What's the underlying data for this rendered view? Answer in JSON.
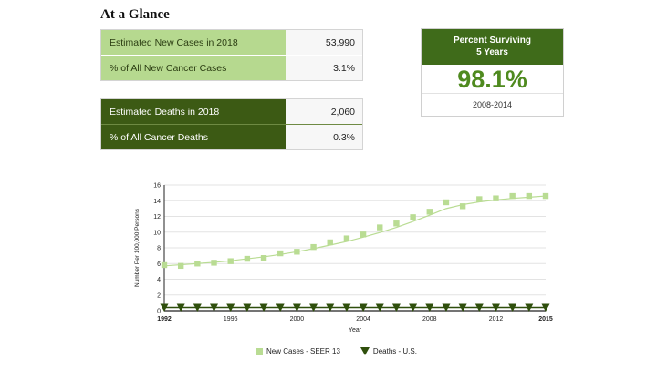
{
  "header": {
    "title": "At a Glance"
  },
  "new_cases_table": {
    "rows": [
      {
        "label": "Estimated New Cases in 2018",
        "value": "53,990"
      },
      {
        "label": "% of All New Cancer Cases",
        "value": "3.1%"
      }
    ]
  },
  "deaths_table": {
    "rows": [
      {
        "label": "Estimated Deaths in 2018",
        "value": "2,060"
      },
      {
        "label": "% of All Cancer Deaths",
        "value": "0.3%"
      }
    ]
  },
  "survival": {
    "heading_line1": "Percent Surviving",
    "heading_line2": "5 Years",
    "value": "98.1%",
    "years": "2008-2014"
  },
  "colors": {
    "light_green": "#b6d98f",
    "dark_green": "#3c5a14",
    "survival_header": "#3f6b1a",
    "survival_value": "#4f8a1f",
    "new_cases_series": "#b9dc93",
    "deaths_series": "#2f4f0c"
  },
  "chart_data": {
    "type": "line",
    "title": "",
    "xlabel": "Year",
    "ylabel": "Number Per 100,000 Persons",
    "xlim": [
      1992,
      2015
    ],
    "ylim": [
      0,
      16
    ],
    "x_ticks": [
      "1992",
      "1996",
      "2000",
      "2004",
      "2008",
      "2012",
      "2015"
    ],
    "y_ticks": [
      "0",
      "2",
      "4",
      "6",
      "8",
      "10",
      "12",
      "14",
      "16"
    ],
    "grid": true,
    "legend_position": "bottom",
    "x": [
      1992,
      1993,
      1994,
      1995,
      1996,
      1997,
      1998,
      1999,
      2000,
      2001,
      2002,
      2003,
      2004,
      2005,
      2006,
      2007,
      2008,
      2009,
      2010,
      2011,
      2012,
      2013,
      2014,
      2015
    ],
    "series": [
      {
        "name": "New Cases - SEER 13",
        "marker": "square",
        "values": [
          5.8,
          5.7,
          6.0,
          6.1,
          6.3,
          6.6,
          6.7,
          7.3,
          7.5,
          8.1,
          8.7,
          9.2,
          9.7,
          10.6,
          11.1,
          11.9,
          12.6,
          13.8,
          13.3,
          14.2,
          14.3,
          14.6,
          14.6,
          14.6
        ],
        "trend": [
          5.7,
          5.85,
          6.0,
          6.15,
          6.35,
          6.6,
          6.85,
          7.15,
          7.5,
          7.9,
          8.35,
          8.8,
          9.35,
          9.95,
          10.6,
          11.35,
          12.15,
          13.0,
          13.5,
          13.85,
          14.1,
          14.3,
          14.45,
          14.6
        ]
      },
      {
        "name": "Deaths - U.S.",
        "marker": "triangle-down",
        "values": [
          0.4,
          0.4,
          0.4,
          0.4,
          0.4,
          0.4,
          0.4,
          0.4,
          0.4,
          0.4,
          0.4,
          0.4,
          0.4,
          0.4,
          0.4,
          0.4,
          0.4,
          0.4,
          0.4,
          0.4,
          0.4,
          0.4,
          0.4,
          0.4
        ],
        "trend": [
          0.4,
          0.4,
          0.4,
          0.4,
          0.4,
          0.4,
          0.4,
          0.4,
          0.4,
          0.4,
          0.4,
          0.4,
          0.4,
          0.4,
          0.4,
          0.4,
          0.4,
          0.4,
          0.4,
          0.4,
          0.4,
          0.4,
          0.4,
          0.4
        ]
      }
    ]
  }
}
